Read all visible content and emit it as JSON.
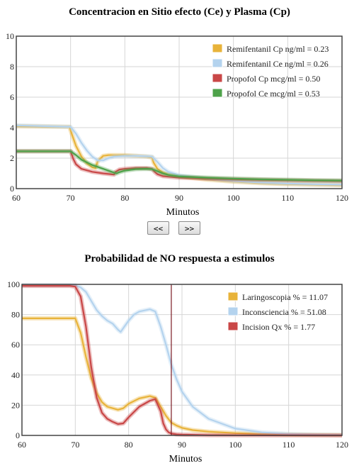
{
  "nav": {
    "prev_label": "<<",
    "next_label": ">>"
  },
  "chart_data": [
    {
      "type": "line",
      "title": "Concentracion en Sitio efecto (Ce) y Plasma (Cp)",
      "xlabel": "Minutos",
      "ylabel": "",
      "xlim": [
        60,
        120
      ],
      "ylim": [
        0,
        10
      ],
      "xticks": [
        60,
        70,
        80,
        90,
        100,
        110,
        120
      ],
      "yticks": [
        0,
        2,
        4,
        6,
        8,
        10
      ],
      "grid": true,
      "legend_position": "top-right",
      "series": [
        {
          "name": "Remifentanil Cp ng/ml = 0.23",
          "color": "#e8b33a",
          "x": [
            60,
            69.8,
            70.3,
            71,
            72,
            73,
            74,
            74.6,
            75,
            76,
            77,
            78,
            80,
            82,
            84,
            85,
            85.3,
            86,
            87,
            88,
            90,
            95,
            100,
            105,
            110,
            115,
            120
          ],
          "y": [
            4.1,
            4.05,
            3.5,
            2.8,
            2.1,
            1.65,
            1.4,
            1.35,
            1.8,
            2.15,
            2.2,
            2.2,
            2.2,
            2.15,
            2.1,
            2.05,
            1.7,
            1.3,
            1.05,
            0.92,
            0.8,
            0.6,
            0.46,
            0.36,
            0.3,
            0.26,
            0.23
          ]
        },
        {
          "name": "Remifentanil Ce ng/ml = 0.26",
          "color": "#b4d3ee",
          "x": [
            60,
            70,
            71,
            72,
            73,
            74,
            75,
            76,
            77,
            78,
            80,
            82,
            84,
            85,
            86,
            87,
            88,
            90,
            95,
            100,
            105,
            110,
            115,
            120
          ],
          "y": [
            4.15,
            4.05,
            3.6,
            3.0,
            2.5,
            2.1,
            1.85,
            1.85,
            2.0,
            2.1,
            2.15,
            2.15,
            2.12,
            2.1,
            1.75,
            1.35,
            1.1,
            0.88,
            0.65,
            0.5,
            0.4,
            0.33,
            0.29,
            0.26
          ]
        },
        {
          "name": "Propofol Cp mcg/ml = 0.50",
          "color": "#c94747",
          "x": [
            60,
            70,
            70.5,
            71,
            72,
            74,
            76,
            78,
            78.3,
            79,
            80,
            82,
            84,
            85,
            85.5,
            86,
            87,
            88,
            90,
            95,
            100,
            105,
            110,
            115,
            120
          ],
          "y": [
            2.45,
            2.45,
            1.95,
            1.6,
            1.3,
            1.1,
            1.0,
            0.92,
            1.1,
            1.25,
            1.3,
            1.35,
            1.35,
            1.3,
            1.1,
            0.95,
            0.82,
            0.78,
            0.72,
            0.66,
            0.62,
            0.58,
            0.55,
            0.52,
            0.5
          ]
        },
        {
          "name": "Propofol Ce mcg/ml = 0.53",
          "color": "#4ea24a",
          "x": [
            60,
            70,
            71,
            72,
            74,
            76,
            78,
            78.5,
            79,
            80,
            82,
            84,
            85,
            86,
            87,
            88,
            90,
            95,
            100,
            105,
            110,
            115,
            120
          ],
          "y": [
            2.45,
            2.45,
            2.2,
            1.9,
            1.55,
            1.3,
            1.05,
            1.0,
            1.08,
            1.18,
            1.28,
            1.3,
            1.28,
            1.15,
            1.0,
            0.9,
            0.8,
            0.72,
            0.66,
            0.61,
            0.58,
            0.55,
            0.53
          ]
        }
      ]
    },
    {
      "type": "line",
      "title": "Probabilidad de NO respuesta a estimulos",
      "xlabel": "Minutos",
      "ylabel": "",
      "xlim": [
        60,
        120
      ],
      "ylim": [
        0,
        100
      ],
      "xticks": [
        60,
        70,
        80,
        90,
        100,
        110,
        120
      ],
      "yticks": [
        0,
        20,
        40,
        60,
        80,
        100
      ],
      "grid": true,
      "legend_position": "top-right",
      "marker_x": 88,
      "series": [
        {
          "name": "Laringoscopia % = 11.07",
          "color": "#e8b33a",
          "x": [
            60,
            70,
            71,
            72,
            73,
            74,
            75,
            76,
            78,
            79,
            80,
            82,
            84,
            85,
            86,
            87,
            88,
            89,
            90,
            92,
            95,
            100,
            105,
            110,
            115,
            120
          ],
          "y": [
            77.5,
            77.5,
            68,
            52,
            38,
            28,
            22,
            19,
            17,
            18,
            21,
            24.5,
            26,
            25,
            19,
            13,
            8.5,
            6.5,
            5,
            3.5,
            2.5,
            1.5,
            1,
            0.6,
            0.4,
            0.3
          ]
        },
        {
          "name": "Inconsciencia % = 51.08",
          "color": "#b4d3ee",
          "x": [
            60,
            70,
            71,
            72,
            73,
            74,
            75,
            76,
            77,
            78,
            78.5,
            79,
            80,
            81,
            82,
            84,
            85,
            86,
            87,
            88,
            89,
            90,
            92,
            95,
            100,
            105,
            110,
            115,
            120
          ],
          "y": [
            99.5,
            99.5,
            98,
            95,
            89,
            83,
            79,
            76,
            74,
            70,
            68.5,
            71,
            76,
            80,
            82,
            83.5,
            82,
            72,
            60,
            47,
            37,
            29,
            19,
            11,
            4.5,
            2,
            1,
            0.5,
            0.3
          ]
        },
        {
          "name": "Incision Qx % = 1.77",
          "color": "#c94747",
          "x": [
            60,
            69,
            70,
            71,
            72,
            73,
            74,
            75,
            76,
            77,
            78,
            79,
            80,
            82,
            84,
            85,
            86,
            86.5,
            87,
            87.5,
            88,
            89,
            90,
            95,
            100,
            110,
            120
          ],
          "y": [
            99,
            99,
            98.5,
            92,
            72,
            45,
            25,
            15,
            11,
            9,
            7.5,
            8,
            12,
            19,
            23,
            24,
            16,
            8,
            4,
            2,
            1.2,
            0.7,
            0.5,
            0.2,
            0.1,
            0.05,
            0
          ]
        }
      ]
    }
  ]
}
